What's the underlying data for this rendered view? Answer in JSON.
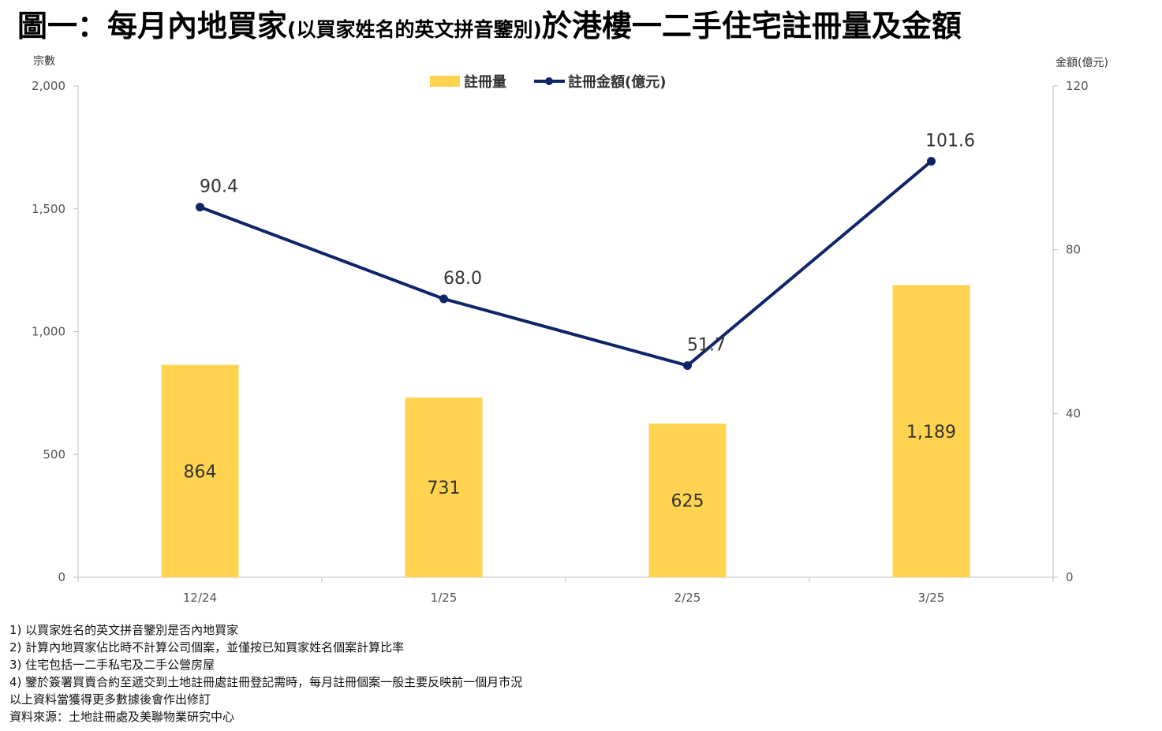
{
  "title": {
    "main_start": "圖一：每月內地買家",
    "sub": "(以買家姓名的英文拼音鑒別)",
    "main_end": "於港樓一二手住宅註冊量及金額"
  },
  "colors": {
    "bar": "#FFD34F",
    "line": "#0E2568",
    "axis": "#bfbfbf"
  },
  "chart_data": {
    "type": "bar",
    "categories": [
      "12/24",
      "1/25",
      "2/25",
      "3/25"
    ],
    "series": [
      {
        "name": "註冊量",
        "type": "bar",
        "axis": "left",
        "values": [
          864,
          731,
          625,
          1189
        ],
        "labels": [
          "864",
          "731",
          "625",
          "1,189"
        ]
      },
      {
        "name": "註冊金額(億元)",
        "type": "line",
        "axis": "right",
        "values": [
          90.4,
          68.0,
          51.7,
          101.6
        ],
        "labels": [
          "90.4",
          "68.0",
          "51.7",
          "101.6"
        ]
      }
    ],
    "y_left": {
      "label": "宗數",
      "ylim": [
        0,
        2000
      ],
      "ticks": [
        0,
        500,
        1000,
        1500,
        2000
      ],
      "tick_labels": [
        "0",
        "500",
        "1,000",
        "1,500",
        "2,000"
      ]
    },
    "y_right": {
      "label": "金額(億元)",
      "ylim": [
        0,
        120
      ],
      "ticks": [
        0,
        40,
        80,
        120
      ],
      "tick_labels": [
        "0",
        "40",
        "80",
        "120"
      ]
    },
    "grid": false,
    "legend": "top-center"
  },
  "notes": [
    "1) 以買家姓名的英文拼音鑒別是否內地買家",
    "2) 計算內地買家佔比時不計算公司個案，並僅按已知買家姓名個案計算比率",
    "3) 住宅包括一二手私宅及二手公營房屋",
    "4) 鑒於簽署買賣合約至遞交到土地註冊處註冊登記需時，每月註冊個案一般主要反映前一個月市況",
    "以上資料當獲得更多數據後會作出修訂",
    "資料來源：土地註冊處及美聯物業研究中心"
  ]
}
